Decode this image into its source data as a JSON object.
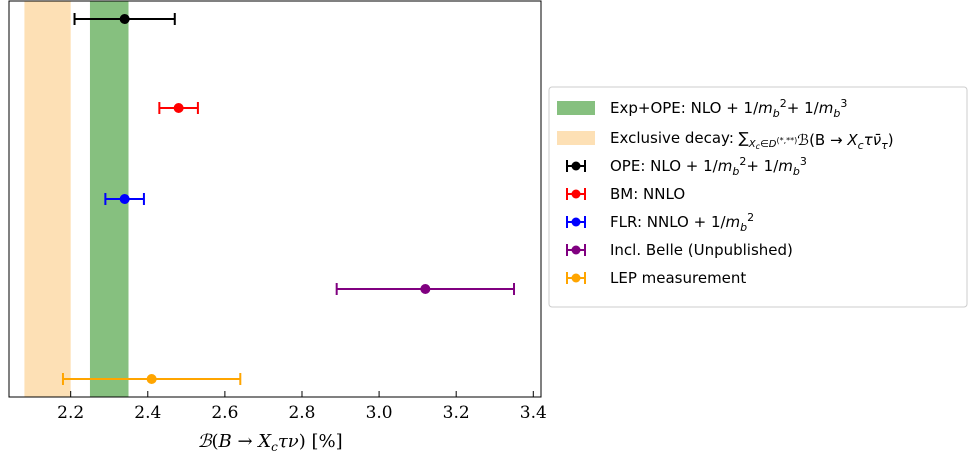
{
  "chart_data": {
    "type": "scatter",
    "xlabel": "B(B → X_c τ ν) [%]",
    "xlim": [
      2.04,
      3.42
    ],
    "xticks": [
      "2.2",
      "2.4",
      "2.6",
      "2.8",
      "3.0",
      "3.2",
      "3.4"
    ],
    "xtick_values": [
      2.2,
      2.4,
      2.6,
      2.8,
      3.0,
      3.2,
      3.4
    ],
    "grid": false,
    "legend_position": "right",
    "bands": [
      {
        "name": "Exp+OPE: NLO + 1/m_b^2 + 1/m_b^3",
        "xmin": 2.25,
        "xmax": 2.35,
        "color": "#86c07f"
      },
      {
        "name": "Exclusive decay: Σ_{X_c∈D^(*,**)} B(B → X_c τ ν̄_τ)",
        "xmin": 2.08,
        "xmax": 2.2,
        "color": "#fde0b5"
      }
    ],
    "series": [
      {
        "name": "OPE: NLO + 1/m_b^2 + 1/m_b^3",
        "value": 2.34,
        "err_low": 2.21,
        "err_high": 2.47,
        "color": "#000000"
      },
      {
        "name": "BM: NNLO",
        "value": 2.48,
        "err_low": 2.43,
        "err_high": 2.53,
        "color": "#ff0000"
      },
      {
        "name": "FLR: NNLO + 1/m_b^2",
        "value": 2.34,
        "err_low": 2.29,
        "err_high": 2.39,
        "color": "#0000ff"
      },
      {
        "name": "Incl. Belle (Unpublished)",
        "value": 3.12,
        "err_low": 2.89,
        "err_high": 3.35,
        "color": "#800080"
      },
      {
        "name": "LEP measurement",
        "value": 2.41,
        "err_low": 2.18,
        "err_high": 2.64,
        "color": "#ffa500"
      }
    ]
  }
}
